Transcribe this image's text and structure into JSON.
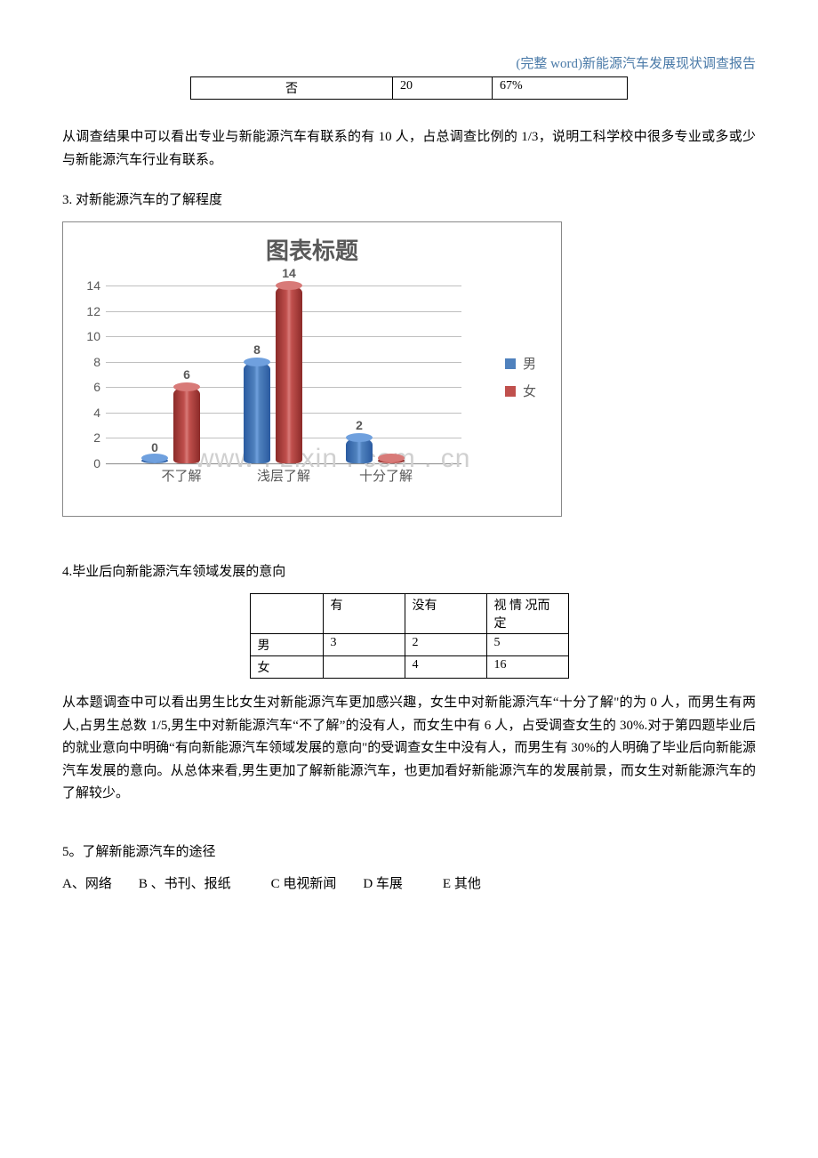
{
  "header": "(完整 word)新能源汽车发展现状调查报告",
  "topTable": {
    "row": [
      "否",
      "20",
      "67%"
    ]
  },
  "para1": "从调查结果中可以看出专业与新能源汽车有联系的有 10 人，占总调查比例的 1/3，说明工科学校中很多专业或多或少与新能源汽车行业有联系。",
  "section3": "3.  对新能源汽车的了解程度",
  "chart": {
    "title": "图表标题",
    "ylim": [
      0,
      14
    ],
    "ytick_step": 2,
    "grid_color": "#bfbfbf",
    "categories": [
      "不了解",
      "浅层了解",
      "十分了解"
    ],
    "series": [
      {
        "name": "男",
        "color": "#4f81bd",
        "values": [
          0,
          8,
          2
        ]
      },
      {
        "name": "女",
        "color": "#c0504d",
        "values": [
          6,
          14,
          0
        ]
      }
    ],
    "unit_height": 14.3
  },
  "watermark": "www . zixin . com . cn",
  "section4": "4.毕业后向新能源汽车领域发展的意向",
  "table4": {
    "headers": [
      "",
      "有",
      "没有",
      "视 情 况而定"
    ],
    "rows": [
      [
        "男",
        "3",
        "2",
        "5"
      ],
      [
        "女",
        "",
        "4",
        "16"
      ]
    ]
  },
  "para2": "从本题调查中可以看出男生比女生对新能源汽车更加感兴趣，女生中对新能源汽车“十分了解\"的为 0 人，而男生有两人,占男生总数 1/5,男生中对新能源汽车“不了解”的没有人，而女生中有 6 人，占受调查女生的 30%.对于第四题毕业后的就业意向中明确“有向新能源汽车领域发展的意向\"的受调查女生中没有人，而男生有 30%的人明确了毕业后向新能源汽车发展的意向。从总体来看,男生更加了解新能源汽车，也更加看好新能源汽车的发展前景，而女生对新能源汽车的了解较少。",
  "section5": "5。了解新能源汽车的途径",
  "options5": "A、网络　　B 、书刊、报纸　　　C 电视新闻　　D 车展　　　E 其他"
}
